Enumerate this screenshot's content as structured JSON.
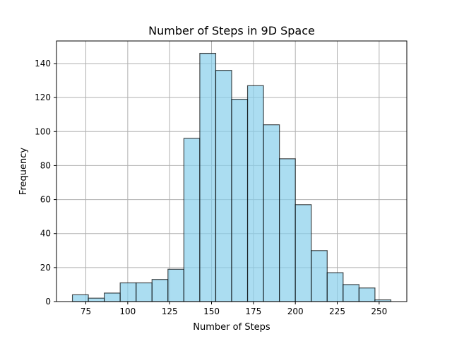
{
  "chart_data": {
    "type": "bar",
    "title": "Number of Steps in 9D Space",
    "xlabel": "Number of Steps",
    "ylabel": "Frequency",
    "bin_edges": [
      67,
      76.5,
      86,
      95.5,
      105,
      114.5,
      124,
      133.5,
      143,
      152.5,
      162,
      171.5,
      181,
      190.5,
      200,
      209.5,
      219,
      228.5,
      238,
      247.5,
      257
    ],
    "values": [
      4,
      2,
      5,
      11,
      11,
      13,
      19,
      96,
      146,
      136,
      119,
      127,
      104,
      84,
      57,
      30,
      17,
      10,
      8,
      1
    ],
    "xlim": [
      57.5,
      266.5
    ],
    "ylim": [
      0,
      153.3
    ],
    "xticks": [
      75,
      100,
      125,
      150,
      175,
      200,
      225,
      250
    ],
    "yticks": [
      0,
      20,
      40,
      60,
      80,
      100,
      120,
      140
    ],
    "grid": true,
    "colors": {
      "bar_fill": "#87ceeb",
      "bar_edge": "#000000",
      "grid": "#b0b0b0"
    }
  }
}
